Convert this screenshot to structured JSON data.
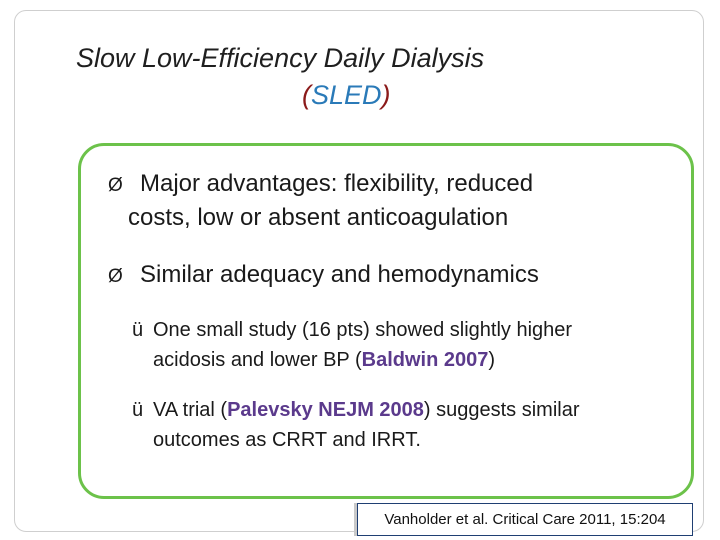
{
  "title": {
    "line1": "Slow Low-Efficiency Daily Dialysis",
    "open_paren": "(",
    "abbreviation": "SLED",
    "close_paren": ")"
  },
  "bullets": [
    {
      "marker": "Ø",
      "line1": "Major advantages: flexibility, reduced",
      "line2": "costs, low or absent anticoagulation"
    },
    {
      "marker": "Ø",
      "line1": "Similar adequacy and hemodynamics"
    }
  ],
  "sub_bullets": [
    {
      "marker": "ü",
      "line1": "One small study (16 pts) showed slightly higher",
      "line2_pre": "acidosis and lower BP (",
      "line2_ref": "Baldwin 2007",
      "line2_post": ")"
    },
    {
      "marker": "ü",
      "line1_pre": "VA trial (",
      "line1_ref": "Palevsky NEJM 2008",
      "line1_post": ") suggests similar",
      "line2": "outcomes as CRRT and IRRT."
    }
  ],
  "citation": "Vanholder et al. Critical Care 2011, 15:204",
  "colors": {
    "box_border": "#6cc24a",
    "abbreviation": "#2a7ab8",
    "paren": "#8b1a1a",
    "reference": "#5b3a8c"
  }
}
